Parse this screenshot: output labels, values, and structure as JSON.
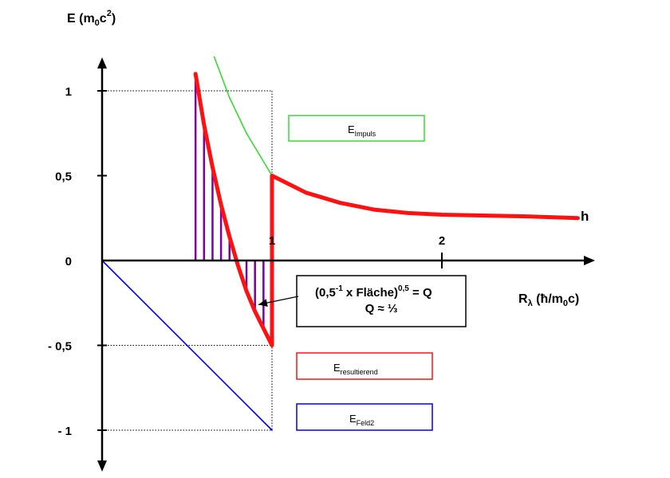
{
  "chart_data": {
    "type": "line",
    "ylabel": {
      "main": "E (m",
      "sub": "0",
      "mid": "c",
      "sup": "2",
      "end": ")"
    },
    "xlabel": {
      "main": "R",
      "sub": "λ",
      "end": " (ħ/m",
      "sub2": "0",
      "end2": "c)"
    },
    "yticks": [
      {
        "value": 1,
        "label": "1"
      },
      {
        "value": 0.5,
        "label": "0,5"
      },
      {
        "value": 0,
        "label": "0"
      },
      {
        "value": -0.5,
        "label": "- 0,5"
      },
      {
        "value": -1,
        "label": "- 1"
      }
    ],
    "xticks": [
      {
        "value": 1,
        "label": "1"
      },
      {
        "value": 2,
        "label": "2"
      }
    ],
    "xlim": [
      0,
      2.95
    ],
    "ylim": [
      -1.25,
      1.2
    ],
    "series": [
      {
        "name": "Impuls",
        "color": "#33dd33",
        "x": [
          0.66,
          0.75,
          0.85,
          1.0
        ],
        "y": [
          1.2,
          0.96,
          0.75,
          0.5
        ]
      },
      {
        "name": "resultierend",
        "color": "#ff1111",
        "x": [
          0.55,
          0.6,
          0.65,
          0.7,
          0.75,
          0.8,
          0.85,
          0.9,
          0.95,
          1.0,
          1.0,
          1.0,
          1.0,
          1.1,
          1.2,
          1.4,
          1.6,
          1.8,
          2.0,
          2.5,
          2.8
        ],
        "y": [
          1.1,
          0.8,
          0.55,
          0.33,
          0.14,
          -0.03,
          -0.18,
          -0.3,
          -0.4,
          -0.5,
          -0.5,
          -0.15,
          0.5,
          0.45,
          0.4,
          0.34,
          0.3,
          0.28,
          0.27,
          0.26,
          0.25
        ]
      },
      {
        "name": "Feld2",
        "color": "#0000ee",
        "x": [
          0,
          1.0
        ],
        "y": [
          0,
          -1.0
        ]
      }
    ],
    "hatch_x": [
      0.55,
      0.6,
      0.65,
      0.7,
      0.75,
      0.8,
      0.85,
      0.9,
      0.95,
      1.0
    ],
    "curve_label": "h",
    "annotation": {
      "line1": {
        "main": "(0,5",
        "sup1": "-1",
        "mid": " x Fläche)",
        "sup2": "0,5",
        "end": " = Q"
      },
      "line2": "Q ≈ ⅓",
      "arrow_to": {
        "x": 0.92,
        "y": -0.26
      }
    },
    "legend": [
      {
        "main": "E",
        "sub": "Impuls",
        "color": "#33dd33"
      },
      {
        "main": "E",
        "sub": "resultierend",
        "color": "#ff1111"
      },
      {
        "main": "E",
        "sub": "Feld2",
        "color": "#0000ee"
      }
    ]
  }
}
